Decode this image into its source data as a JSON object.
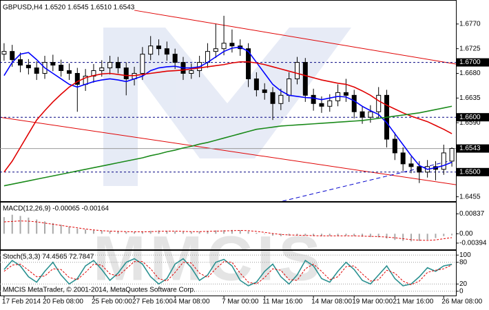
{
  "watermark": "MMCIS",
  "footer": "MMCIS MetaTrader, © 2001-2014, MetaQuotes Software Corp.",
  "chart_data": [
    {
      "type": "candlestick",
      "title": "GBPUSD,H4  1.6520 1.6545 1.6510 1.6543",
      "categories": [
        "17 Feb 2014",
        null,
        null,
        null,
        null,
        "20 Feb 08:00",
        null,
        null,
        null,
        null,
        null,
        "25 Feb 00:00",
        null,
        null,
        null,
        null,
        "27 Feb 16:00",
        null,
        null,
        null,
        null,
        "4 Mar 08:00",
        null,
        null,
        null,
        null,
        null,
        "7 Mar 00:00",
        null,
        null,
        null,
        null,
        "11 Mar 16:00",
        null,
        null,
        null,
        null,
        null,
        "14 Mar 08:00",
        null,
        null,
        null,
        null,
        "19 Mar 00:00",
        null,
        null,
        null,
        null,
        "21 Mar 16:00",
        null,
        null,
        null,
        null,
        null,
        "26 Mar 08:00",
        null
      ],
      "open": [
        1.6715,
        1.672,
        1.6705,
        1.6695,
        1.669,
        1.668,
        1.67,
        1.6695,
        1.6685,
        1.668,
        1.666,
        1.6675,
        1.6685,
        1.669,
        1.67,
        1.669,
        1.667,
        1.668,
        1.6715,
        1.673,
        1.6725,
        1.6715,
        1.67,
        1.668,
        1.6685,
        1.67,
        1.672,
        1.6725,
        1.6735,
        1.673,
        1.6725,
        1.667,
        1.665,
        1.6645,
        1.6625,
        1.664,
        1.667,
        1.67,
        1.664,
        1.6625,
        1.662,
        1.663,
        1.6645,
        1.664,
        1.661,
        1.66,
        1.661,
        1.664,
        1.656,
        1.6535,
        1.6515,
        1.651,
        1.65,
        1.651,
        1.6505,
        1.652
      ],
      "high": [
        1.6735,
        1.6732,
        1.6718,
        1.6706,
        1.6702,
        1.6712,
        1.6714,
        1.6705,
        1.6698,
        1.669,
        1.6688,
        1.6697,
        1.6704,
        1.6712,
        1.671,
        1.67,
        1.6692,
        1.6728,
        1.6748,
        1.6742,
        1.6738,
        1.6725,
        1.671,
        1.6698,
        1.6712,
        1.6735,
        1.677,
        1.6785,
        1.676,
        1.6742,
        1.6735,
        1.6682,
        1.6662,
        1.6655,
        1.6652,
        1.6682,
        1.671,
        1.6708,
        1.6652,
        1.6638,
        1.6642,
        1.666,
        1.667,
        1.665,
        1.662,
        1.6622,
        1.6655,
        1.665,
        1.6572,
        1.6545,
        1.6528,
        1.652,
        1.6522,
        1.652,
        1.655,
        1.6545
      ],
      "low": [
        1.6703,
        1.6692,
        1.6682,
        1.6678,
        1.6668,
        1.667,
        1.6684,
        1.6674,
        1.6668,
        1.661,
        1.6648,
        1.6663,
        1.6674,
        1.6678,
        1.668,
        1.664,
        1.6658,
        1.6668,
        1.6704,
        1.6713,
        1.6703,
        1.6688,
        1.6668,
        1.667,
        1.6673,
        1.669,
        1.6708,
        1.6713,
        1.6718,
        1.6712,
        1.6655,
        1.6638,
        1.6632,
        1.6595,
        1.6613,
        1.6628,
        1.666,
        1.6628,
        1.6612,
        1.6608,
        1.661,
        1.662,
        1.6628,
        1.6598,
        1.6588,
        1.659,
        1.6598,
        1.6545,
        1.6522,
        1.6502,
        1.6498,
        1.648,
        1.649,
        1.6485,
        1.6495,
        1.651
      ],
      "close": [
        1.672,
        1.6705,
        1.6695,
        1.669,
        1.668,
        1.67,
        1.6695,
        1.6685,
        1.668,
        1.666,
        1.6675,
        1.6685,
        1.669,
        1.67,
        1.669,
        1.667,
        1.668,
        1.6715,
        1.673,
        1.6725,
        1.6715,
        1.67,
        1.668,
        1.6685,
        1.67,
        1.672,
        1.6725,
        1.6735,
        1.673,
        1.6725,
        1.667,
        1.665,
        1.6645,
        1.6625,
        1.664,
        1.667,
        1.67,
        1.664,
        1.6625,
        1.662,
        1.663,
        1.6645,
        1.664,
        1.661,
        1.66,
        1.661,
        1.664,
        1.656,
        1.6535,
        1.6515,
        1.651,
        1.65,
        1.651,
        1.6505,
        1.6535,
        1.6543
      ],
      "series": [
        {
          "color": "#0000ff",
          "values": [
            1.6676,
            1.67,
            1.6715,
            1.6718,
            1.6705,
            1.669,
            1.668,
            1.667,
            1.666,
            1.6655,
            1.666,
            1.6665,
            1.6668,
            1.667,
            1.6668,
            1.6665,
            1.667,
            1.6675,
            1.6685,
            1.669,
            1.6692,
            1.6693,
            1.669,
            1.669,
            1.6692,
            1.67,
            1.671,
            1.672,
            1.6726,
            1.6728,
            1.672,
            1.67,
            1.668,
            1.666,
            1.6648,
            1.664,
            1.6638,
            1.6636,
            1.6635,
            1.6632,
            1.6635,
            1.6638,
            1.6637,
            1.663,
            1.662,
            1.6612,
            1.6605,
            1.659,
            1.657,
            1.655,
            1.653,
            1.6512,
            1.6505,
            1.6508,
            1.6512,
            1.6518
          ]
        },
        {
          "color": "#e00000",
          "values": [
            1.65,
            1.652,
            1.6545,
            1.657,
            1.6595,
            1.6612,
            1.6628,
            1.6642,
            1.6655,
            1.6665,
            1.6672,
            1.6676,
            1.6679,
            1.668,
            1.6678,
            1.6676,
            1.6676,
            1.6678,
            1.668,
            1.6682,
            1.6684,
            1.6685,
            1.6686,
            1.6688,
            1.669,
            1.6692,
            1.6694,
            1.6696,
            1.6699,
            1.6701,
            1.6701,
            1.6699,
            1.6696,
            1.6692,
            1.6688,
            1.6684,
            1.668,
            1.6676,
            1.6672,
            1.6668,
            1.6665,
            1.6662,
            1.666,
            1.6655,
            1.6648,
            1.664,
            1.663,
            1.6622,
            1.6615,
            1.6608,
            1.6602,
            1.6597,
            1.6592,
            1.6585,
            1.6578,
            1.657
          ]
        },
        {
          "color": "#1a8a1a",
          "values": [
            1.6475,
            1.6478,
            1.6481,
            1.6484,
            1.6487,
            1.649,
            1.6493,
            1.6496,
            1.6499,
            1.6502,
            1.6505,
            1.6508,
            1.6511,
            1.6514,
            1.6517,
            1.652,
            1.6523,
            1.6526,
            1.653,
            1.6533,
            1.6537,
            1.654,
            1.6544,
            1.6547,
            1.6551,
            1.6554,
            1.6558,
            1.6562,
            1.6566,
            1.657,
            1.6574,
            1.6578,
            1.658,
            1.6582,
            1.6584,
            1.6585,
            1.6586,
            1.6587,
            1.6588,
            1.6589,
            1.659,
            1.6591,
            1.6592,
            1.6593,
            1.6594,
            1.6596,
            1.6598,
            1.66,
            1.6602,
            1.6604,
            1.6606,
            1.6608,
            1.6611,
            1.6614,
            1.6617,
            1.662
          ]
        }
      ],
      "trendlines": [
        {
          "color": "#e00000",
          "x": [
            16,
            55.5
          ],
          "y": [
            1.6795,
            1.6697
          ]
        },
        {
          "color": "#e00000",
          "x": [
            -0.5,
            55.5
          ],
          "y": [
            1.66,
            1.6477
          ]
        },
        {
          "color": "#0000cc",
          "x": [
            34.2,
            55.5
          ],
          "y": [
            1.6447,
            1.6523
          ],
          "dashed": true
        }
      ],
      "ylim": [
        1.6447,
        1.681
      ],
      "yticks": [
        {
          "value": 1.6455,
          "label": "1.6455"
        },
        {
          "value": 1.659,
          "label": "1.6590"
        },
        {
          "value": 1.6635,
          "label": "1.6635"
        },
        {
          "value": 1.668,
          "label": "1.6680"
        },
        {
          "value": 1.6725,
          "label": "1.6725"
        },
        {
          "value": 1.677,
          "label": "1.6770"
        }
      ],
      "levels": [
        {
          "value": 1.67,
          "label": "1.6700"
        },
        {
          "value": 1.66,
          "label": "1.6600"
        },
        {
          "value": 1.65,
          "label": "1.6500"
        }
      ],
      "last_price": {
        "value": 1.6543,
        "label": "1.6543"
      }
    },
    {
      "type": "macd",
      "title": "MACD(12,26,9) -0.00065 -0.00164",
      "series": [
        {
          "kind": "bar",
          "color": "#a8a8a8",
          "values": [
            0.007,
            0.008,
            0.0075,
            0.0068,
            0.006,
            0.0052,
            0.0045,
            0.0038,
            0.003,
            0.0022,
            0.0018,
            0.0015,
            0.0014,
            0.0012,
            0.001,
            0.0008,
            0.0008,
            0.001,
            0.0012,
            0.0014,
            0.0012,
            0.001,
            0.0008,
            0.0008,
            0.001,
            0.0012,
            0.0014,
            0.0015,
            0.0016,
            0.0015,
            0.001,
            0.0004,
            -0.0002,
            -0.0008,
            -0.001,
            -0.0008,
            -0.0006,
            -0.0008,
            -0.001,
            -0.001,
            -0.0009,
            -0.0008,
            -0.0008,
            -0.001,
            -0.0012,
            -0.0014,
            -0.0015,
            -0.002,
            -0.0026,
            -0.003,
            -0.0032,
            -0.003,
            -0.0025,
            -0.0018,
            -0.001,
            -0.00065
          ]
        },
        {
          "kind": "line",
          "color": "#e00000",
          "dashed": true,
          "values": [
            0.005,
            0.0052,
            0.0054,
            0.0053,
            0.005,
            0.0045,
            0.004,
            0.0035,
            0.003,
            0.0025,
            0.002,
            0.0016,
            0.0013,
            0.0011,
            0.001,
            0.0009,
            0.0008,
            0.0008,
            0.0009,
            0.001,
            0.0011,
            0.0011,
            0.001,
            0.0009,
            0.0009,
            0.001,
            0.0011,
            0.0012,
            0.0013,
            0.0014,
            0.0013,
            0.001,
            0.0006,
            0.0001,
            -0.0003,
            -0.0005,
            -0.0006,
            -0.0007,
            -0.0008,
            -0.0009,
            -0.0009,
            -0.0009,
            -0.0009,
            -0.0009,
            -0.001,
            -0.0011,
            -0.0012,
            -0.0014,
            -0.0017,
            -0.0021,
            -0.0025,
            -0.0027,
            -0.0028,
            -0.0026,
            -0.0021,
            -0.00164
          ]
        }
      ],
      "ylim": [
        -0.00658,
        0.01285
      ],
      "yticks": [
        -0.00394,
        {
          "value": 0,
          "label": "0.00"
        },
        0.00837
      ]
    },
    {
      "type": "line",
      "title": "Stoch(5,3,3) 74.4565 72.7847",
      "series": [
        {
          "kind": "line",
          "color": "#2a9090",
          "values": [
            60,
            85,
            70,
            40,
            25,
            55,
            80,
            45,
            20,
            35,
            70,
            85,
            60,
            30,
            50,
            80,
            90,
            75,
            40,
            20,
            35,
            75,
            90,
            65,
            30,
            45,
            80,
            88,
            70,
            30,
            15,
            25,
            55,
            75,
            40,
            20,
            45,
            85,
            70,
            35,
            25,
            55,
            80,
            60,
            30,
            20,
            45,
            70,
            35,
            15,
            20,
            40,
            65,
            55,
            70,
            74.4565
          ]
        },
        {
          "kind": "line",
          "color": "#e00000",
          "dashed": true,
          "values": [
            55,
            72,
            75,
            58,
            40,
            42,
            62,
            60,
            38,
            32,
            52,
            75,
            72,
            48,
            42,
            62,
            82,
            82,
            62,
            35,
            28,
            52,
            80,
            78,
            50,
            38,
            62,
            82,
            80,
            50,
            25,
            20,
            38,
            62,
            58,
            32,
            30,
            62,
            75,
            55,
            32,
            40,
            68,
            70,
            48,
            28,
            32,
            58,
            50,
            28,
            18,
            28,
            52,
            58,
            62,
            72.7847
          ]
        }
      ],
      "ylim": [
        -10,
        110
      ],
      "yticks": [
        0,
        20,
        80,
        100
      ]
    }
  ]
}
